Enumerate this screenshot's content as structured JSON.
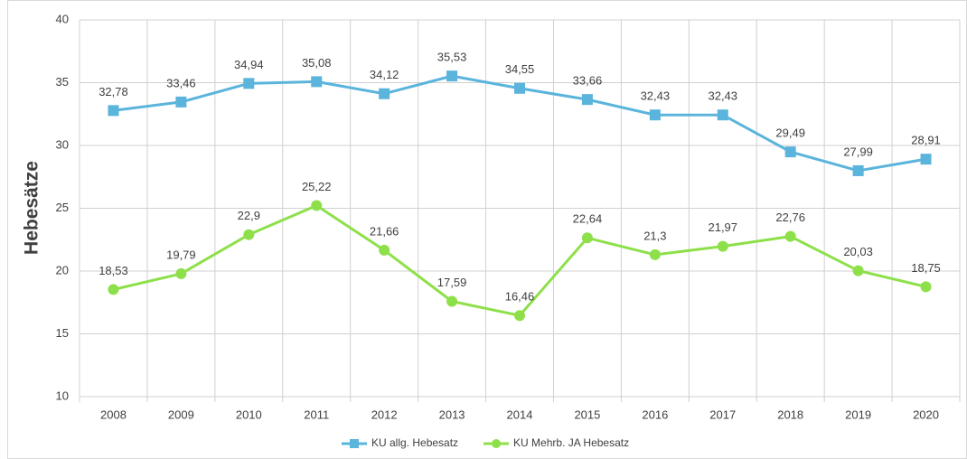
{
  "chart_data": {
    "type": "line",
    "y_label": "Hebesätze",
    "categories": [
      "2008",
      "2009",
      "2010",
      "2011",
      "2012",
      "2013",
      "2014",
      "2015",
      "2016",
      "2017",
      "2018",
      "2019",
      "2020"
    ],
    "series": [
      {
        "name": "KU allg. Hebesatz",
        "color": "#5ab4dc",
        "marker": "square",
        "values": [
          32.78,
          33.46,
          34.94,
          35.08,
          34.12,
          35.53,
          34.55,
          33.66,
          32.43,
          32.43,
          29.49,
          27.99,
          28.91
        ],
        "value_labels": [
          "32,78",
          "33,46",
          "34,94",
          "35,08",
          "34,12",
          "35,53",
          "34,55",
          "33,66",
          "32,43",
          "32,43",
          "29,49",
          "27,99",
          "28,91"
        ]
      },
      {
        "name": "KU Mehrb. JA Hebesatz",
        "color": "#8ee04a",
        "marker": "circle",
        "values": [
          18.53,
          19.79,
          22.9,
          25.22,
          21.66,
          17.59,
          16.46,
          22.64,
          21.3,
          21.97,
          22.76,
          20.03,
          18.75
        ],
        "value_labels": [
          "18,53",
          "19,79",
          "22,9",
          "25,22",
          "21,66",
          "17,59",
          "16,46",
          "22,64",
          "21,3",
          "21,97",
          "22,76",
          "20,03",
          "18,75"
        ]
      }
    ],
    "ylim": [
      10,
      40
    ],
    "yticks": [
      10,
      15,
      20,
      25,
      30,
      35,
      40
    ],
    "grid": true,
    "legend": "bottom"
  }
}
